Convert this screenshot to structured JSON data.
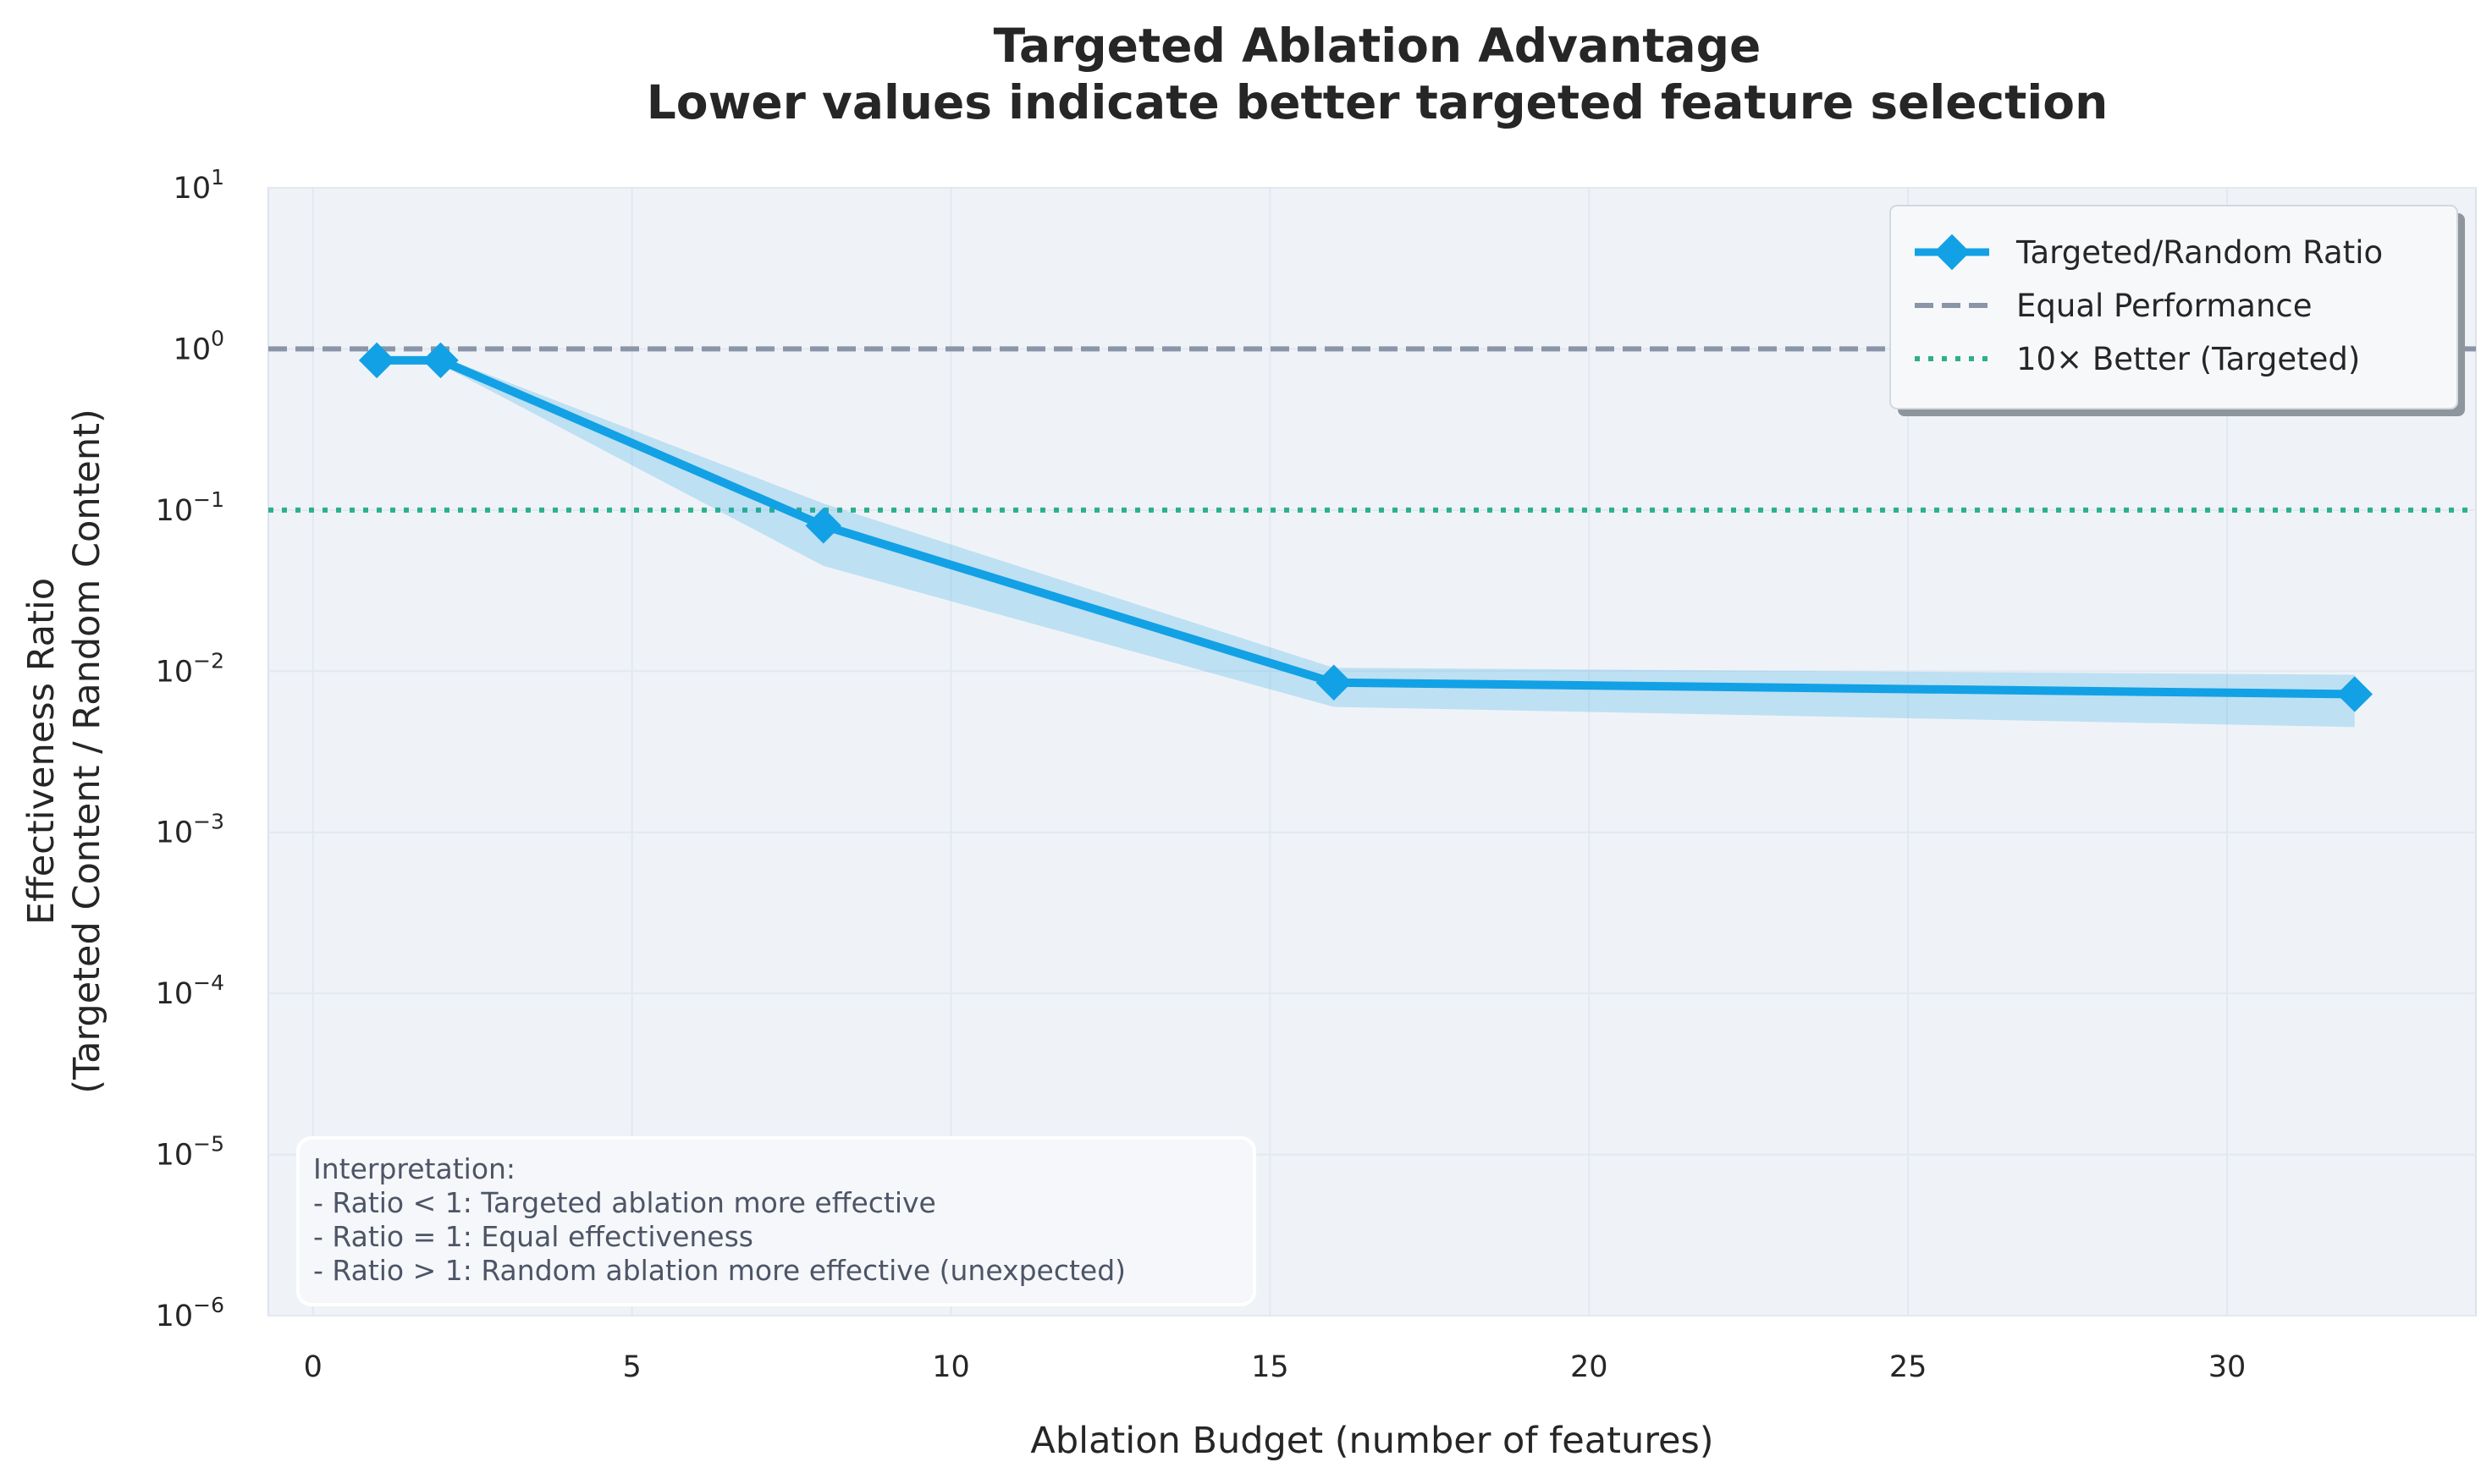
{
  "chart_data": {
    "type": "line",
    "title": "Targeted Ablation Advantage",
    "subtitle": "Lower values indicate better targeted feature selection",
    "xlabel": "Ablation Budget (number of features)",
    "ylabel_line1": "Effectiveness Ratio",
    "ylabel_line2": "(Targeted Content / Random Content)",
    "xlim": [
      -0.7,
      33.9
    ],
    "ylim": [
      1e-06,
      10
    ],
    "yscale": "log",
    "grid": true,
    "x_ticks": [
      0,
      5,
      10,
      15,
      20,
      25,
      30
    ],
    "y_ticks": [
      {
        "value": 10,
        "base": "10",
        "exp": "1"
      },
      {
        "value": 1,
        "base": "10",
        "exp": "0"
      },
      {
        "value": 0.1,
        "base": "10",
        "exp": "−1"
      },
      {
        "value": 0.01,
        "base": "10",
        "exp": "−2"
      },
      {
        "value": 0.001,
        "base": "10",
        "exp": "−3"
      },
      {
        "value": 0.0001,
        "base": "10",
        "exp": "−4"
      },
      {
        "value": 1e-05,
        "base": "10",
        "exp": "−5"
      },
      {
        "value": 1e-06,
        "base": "10",
        "exp": "−6"
      }
    ],
    "series": [
      {
        "name": "Targeted/Random Ratio",
        "color": "#12a1e5",
        "x": [
          1,
          2,
          8,
          16,
          32
        ],
        "y": [
          0.85,
          0.85,
          0.08,
          0.0085,
          0.0072
        ],
        "band_lower": [
          0.8,
          0.8,
          0.045,
          0.006,
          0.0045
        ],
        "band_upper": [
          0.9,
          0.9,
          0.11,
          0.0105,
          0.0095
        ]
      }
    ],
    "reference_lines": [
      {
        "name": "Equal Performance",
        "y": 1,
        "style": "dashed",
        "color": "#8a95a8"
      },
      {
        "name": "10× Better (Targeted)",
        "y": 0.1,
        "style": "dotted",
        "color": "#2bb08a"
      }
    ],
    "legend_position": "top-right",
    "annotation": {
      "lines": [
        "Interpretation:",
        "- Ratio < 1: Targeted ablation more effective",
        "- Ratio = 1: Equal effectiveness",
        "- Ratio > 1: Random ablation more effective (unexpected)"
      ]
    }
  }
}
